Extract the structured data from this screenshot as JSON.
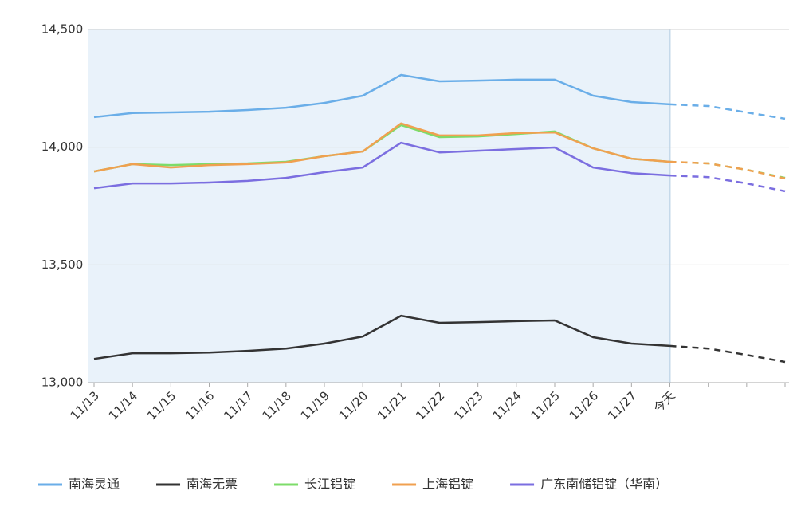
{
  "chart_data": {
    "type": "line",
    "categories": [
      "11/13",
      "11/14",
      "11/15",
      "11/16",
      "11/17",
      "11/18",
      "11/19",
      "11/20",
      "11/21",
      "11/22",
      "11/23",
      "11/24",
      "11/25",
      "11/26",
      "11/27",
      "今天",
      null,
      null,
      null
    ],
    "series": [
      {
        "name": "南海灵通",
        "color": "#6aaee8",
        "values": [
          14128,
          14145,
          14148,
          14151,
          14158,
          14168,
          14188,
          14219,
          14307,
          14280,
          14283,
          14287,
          14287,
          14219,
          14192,
          14182,
          14175,
          14148,
          14121
        ]
      },
      {
        "name": "南海无票",
        "color": "#333333",
        "values": [
          13101,
          13125,
          13125,
          13128,
          13135,
          13145,
          13166,
          13196,
          13284,
          13254,
          13257,
          13261,
          13264,
          13193,
          13166,
          13156,
          13145,
          13118,
          13088
        ]
      },
      {
        "name": "长江铝锭",
        "color": "#7ddc6a",
        "values": [
          13897,
          13928,
          13924,
          13928,
          13931,
          13938,
          13962,
          13982,
          14094,
          14043,
          14046,
          14056,
          14067,
          13995,
          13951,
          13938,
          13931,
          13904,
          13870
        ]
      },
      {
        "name": "上海铝锭",
        "color": "#f0a050",
        "values": [
          13897,
          13928,
          13914,
          13924,
          13928,
          13935,
          13962,
          13982,
          14101,
          14050,
          14050,
          14060,
          14063,
          13995,
          13951,
          13938,
          13931,
          13904,
          13867
        ]
      },
      {
        "name": "广东南储铝锭（华南）",
        "color": "#7b6ee0",
        "values": [
          13826,
          13846,
          13846,
          13850,
          13857,
          13870,
          13894,
          13914,
          14019,
          13978,
          13985,
          13992,
          13999,
          13914,
          13890,
          13880,
          13873,
          13846,
          13813
        ]
      }
    ],
    "ylim": [
      13000,
      14500
    ],
    "yticks": [
      {
        "value": 13000,
        "label": "13,000"
      },
      {
        "value": 13500,
        "label": "13,500"
      },
      {
        "value": 14000,
        "label": "14,000"
      },
      {
        "value": 14500,
        "label": "14,500"
      }
    ],
    "grid": true
  }
}
